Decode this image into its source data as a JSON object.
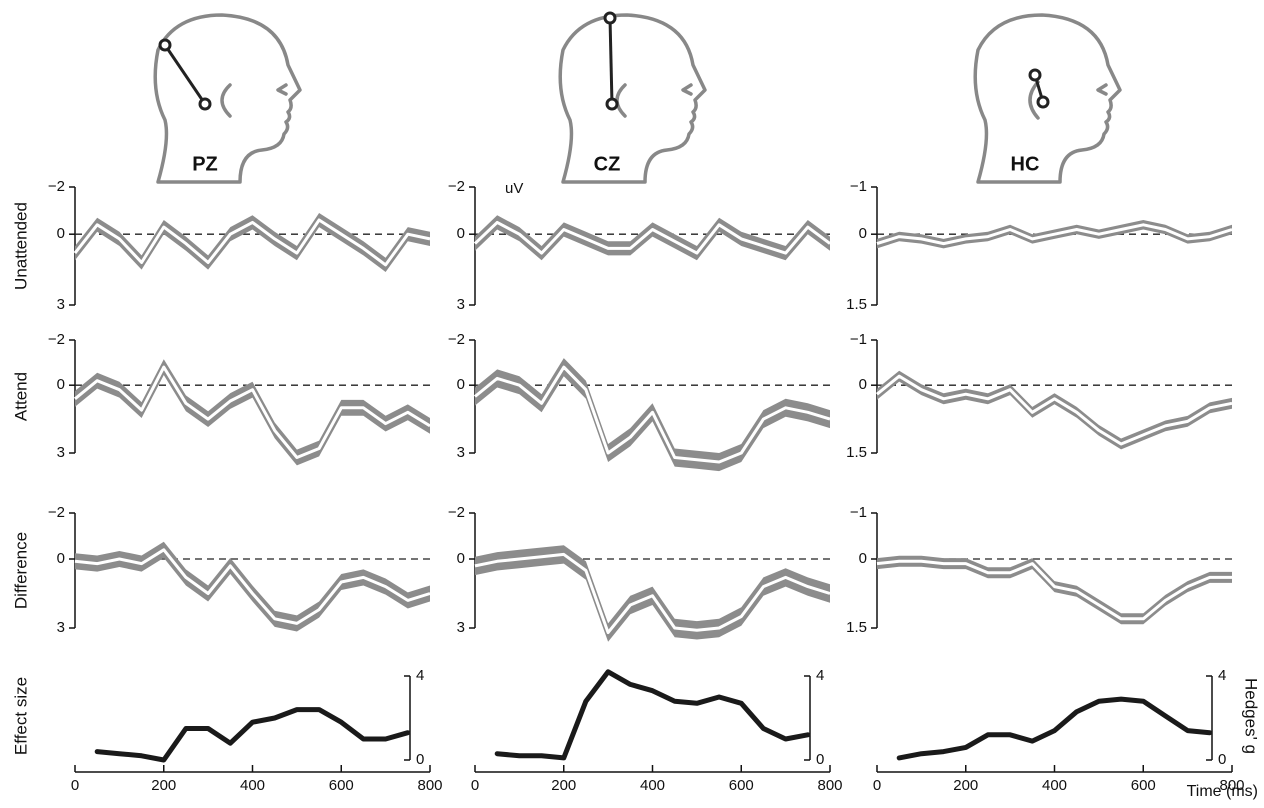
{
  "chart_data": [
    {
      "type": "erp",
      "title": "PZ",
      "x": [
        0,
        50,
        100,
        150,
        200,
        250,
        300,
        350,
        400,
        450,
        500,
        550,
        600,
        650,
        700,
        750,
        800
      ],
      "xlim": [
        0,
        800
      ],
      "xticks": [
        0,
        200,
        400,
        600,
        800
      ],
      "panels": [
        {
          "ylabel": "Unattended",
          "ylim": [
            {
              "value": -2,
              "label": "−2"
            },
            3
          ],
          "yticks": [
            {
              "value": -2,
              "label": "−2"
            },
            0,
            3
          ],
          "values": [
            0.8,
            -0.4,
            0.2,
            1.2,
            -0.3,
            0.4,
            1.2,
            0,
            -0.5,
            0.2,
            0.8,
            -0.6,
            0,
            0.6,
            1.3,
            0,
            0.2
          ],
          "errors": [
            0.3,
            0.3,
            0.3,
            0.3,
            0.3,
            0.3,
            0.3,
            0.3,
            0.3,
            0.3,
            0.3,
            0.3,
            0.3,
            0.3,
            0.3,
            0.3,
            0.3
          ]
        },
        {
          "ylabel": "Attend",
          "ylim": [
            {
              "value": -2,
              "label": "−2"
            },
            3
          ],
          "yticks": [
            {
              "value": -2,
              "label": "−2"
            },
            0,
            3
          ],
          "values": [
            0.6,
            -0.2,
            0.2,
            1.1,
            -0.8,
            0.8,
            1.5,
            0.7,
            0.2,
            2.0,
            3.2,
            2.8,
            1.0,
            1.0,
            1.7,
            1.2,
            1.8
          ],
          "errors": [
            0.35,
            0.35,
            0.35,
            0.35,
            0.35,
            0.35,
            0.35,
            0.35,
            0.35,
            0.35,
            0.35,
            0.35,
            0.35,
            0.35,
            0.35,
            0.35,
            0.35
          ]
        },
        {
          "ylabel": "Difference",
          "ylim": [
            {
              "value": -2,
              "label": "−2"
            },
            3
          ],
          "yticks": [
            {
              "value": -2,
              "label": "−2"
            },
            0,
            3
          ],
          "values": [
            0.1,
            0.2,
            0,
            0.2,
            -0.4,
            0.8,
            1.5,
            0.3,
            1.5,
            2.6,
            2.8,
            2.2,
            1.0,
            0.8,
            1.2,
            1.8,
            1.5
          ],
          "errors": [
            0.35,
            0.35,
            0.35,
            0.35,
            0.35,
            0.35,
            0.35,
            0.35,
            0.35,
            0.35,
            0.35,
            0.35,
            0.35,
            0.35,
            0.35,
            0.35,
            0.35
          ]
        }
      ],
      "effect": {
        "ylabel": "Effect size",
        "ylim": [
          0,
          4
        ],
        "yticks": [
          0,
          4
        ],
        "values": [
          null,
          0.4,
          0.3,
          0.2,
          0.0,
          1.5,
          1.5,
          0.8,
          1.8,
          2.0,
          2.4,
          2.4,
          1.8,
          1.0,
          1.0,
          1.3,
          null
        ]
      }
    },
    {
      "type": "erp",
      "title": "CZ",
      "x": [
        0,
        50,
        100,
        150,
        200,
        250,
        300,
        350,
        400,
        450,
        500,
        550,
        600,
        650,
        700,
        750,
        800
      ],
      "xlim": [
        0,
        800
      ],
      "xticks": [
        0,
        200,
        400,
        600,
        800
      ],
      "panels": [
        {
          "unit": "uV",
          "ylim": [
            {
              "value": -2,
              "label": "−2"
            },
            3
          ],
          "yticks": [
            {
              "value": -2,
              "label": "−2"
            },
            0,
            3
          ],
          "values": [
            0.4,
            -0.5,
            0,
            0.8,
            -0.2,
            0.2,
            0.6,
            0.6,
            -0.2,
            0.3,
            0.8,
            -0.4,
            0.2,
            0.5,
            0.8,
            -0.3,
            0.4
          ],
          "errors": [
            0.3,
            0.3,
            0.3,
            0.3,
            0.3,
            0.3,
            0.3,
            0.3,
            0.3,
            0.3,
            0.3,
            0.3,
            0.3,
            0.3,
            0.3,
            0.3,
            0.3
          ]
        },
        {
          "ylim": [
            {
              "value": -2,
              "label": "−2"
            },
            3
          ],
          "yticks": [
            {
              "value": -2,
              "label": "−2"
            },
            0,
            3
          ],
          "values": [
            0.5,
            -0.3,
            0,
            0.8,
            -0.8,
            0.2,
            3.0,
            2.3,
            1.2,
            3.2,
            3.3,
            3.4,
            3.0,
            1.5,
            1.0,
            1.2,
            1.5
          ],
          "errors": [
            0.4,
            0.4,
            0.4,
            0.4,
            0.4,
            0.4,
            0.4,
            0.4,
            0.4,
            0.4,
            0.4,
            0.4,
            0.4,
            0.4,
            0.4,
            0.4,
            0.4
          ]
        },
        {
          "ylim": [
            {
              "value": -2,
              "label": "−2"
            },
            3
          ],
          "yticks": [
            {
              "value": -2,
              "label": "−2"
            },
            0,
            3
          ],
          "values": [
            0.3,
            0.1,
            0,
            -0.1,
            -0.2,
            0.5,
            3.2,
            2.0,
            1.6,
            3.0,
            3.1,
            3.0,
            2.5,
            1.2,
            0.8,
            1.2,
            1.5
          ],
          "errors": [
            0.4,
            0.4,
            0.4,
            0.4,
            0.4,
            0.4,
            0.4,
            0.4,
            0.4,
            0.4,
            0.4,
            0.4,
            0.4,
            0.4,
            0.4,
            0.4,
            0.4
          ]
        }
      ],
      "effect": {
        "ylim": [
          0,
          4
        ],
        "yticks": [
          0,
          4
        ],
        "values": [
          null,
          0.3,
          0.2,
          0.2,
          0.1,
          2.8,
          4.2,
          3.6,
          3.3,
          2.8,
          2.7,
          3.0,
          2.7,
          1.5,
          1.0,
          1.2,
          null
        ]
      }
    },
    {
      "type": "erp",
      "title": "HC",
      "xlabel": "Time (ms)",
      "x": [
        0,
        50,
        100,
        150,
        200,
        250,
        300,
        350,
        400,
        450,
        500,
        550,
        600,
        650,
        700,
        750,
        800
      ],
      "xlim": [
        0,
        800
      ],
      "xticks": [
        0,
        200,
        400,
        600,
        800
      ],
      "panels": [
        {
          "ylim": [
            {
              "value": -1,
              "label": "−1"
            },
            1.5
          ],
          "yticks": [
            {
              "value": -1,
              "label": "−1"
            },
            0,
            1.5
          ],
          "values": [
            0.2,
            0.05,
            0.1,
            0.2,
            0.1,
            0.05,
            -0.1,
            0.1,
            0,
            -0.1,
            0,
            -0.1,
            -0.2,
            -0.1,
            0.1,
            0.05,
            -0.1
          ],
          "errors": [
            0.1,
            0.1,
            0.1,
            0.1,
            0.1,
            0.1,
            0.1,
            0.1,
            0.1,
            0.1,
            0.1,
            0.1,
            0.1,
            0.1,
            0.1,
            0.1,
            0.1
          ]
        },
        {
          "ylim": [
            {
              "value": -1,
              "label": "−1"
            },
            1.5
          ],
          "yticks": [
            {
              "value": -1,
              "label": "−1"
            },
            0,
            1.5
          ],
          "values": [
            0.2,
            -0.2,
            0.1,
            0.3,
            0.2,
            0.3,
            0.1,
            0.6,
            0.3,
            0.6,
            1.0,
            1.3,
            1.1,
            0.9,
            0.8,
            0.5,
            0.4
          ],
          "errors": [
            0.12,
            0.12,
            0.12,
            0.12,
            0.12,
            0.12,
            0.12,
            0.12,
            0.12,
            0.12,
            0.12,
            0.12,
            0.12,
            0.12,
            0.12,
            0.12,
            0.12
          ]
        },
        {
          "ylim": [
            {
              "value": -1,
              "label": "−1"
            },
            1.5
          ],
          "yticks": [
            {
              "value": -1,
              "label": "−1"
            },
            0,
            1.5
          ],
          "values": [
            0.1,
            0.05,
            0.05,
            0.1,
            0.1,
            0.3,
            0.3,
            0.1,
            0.6,
            0.7,
            1.0,
            1.3,
            1.3,
            0.9,
            0.6,
            0.4,
            0.4
          ],
          "errors": [
            0.12,
            0.12,
            0.12,
            0.12,
            0.12,
            0.12,
            0.12,
            0.12,
            0.12,
            0.12,
            0.12,
            0.12,
            0.12,
            0.12,
            0.12,
            0.12,
            0.12
          ]
        }
      ],
      "effect": {
        "ylabel": "Hedges' g",
        "ylim": [
          0,
          4
        ],
        "yticks": [
          0,
          4
        ],
        "values": [
          null,
          0.1,
          0.3,
          0.4,
          0.6,
          1.2,
          1.2,
          0.9,
          1.4,
          2.3,
          2.8,
          2.9,
          2.8,
          2.1,
          1.4,
          1.3,
          null
        ]
      }
    }
  ]
}
